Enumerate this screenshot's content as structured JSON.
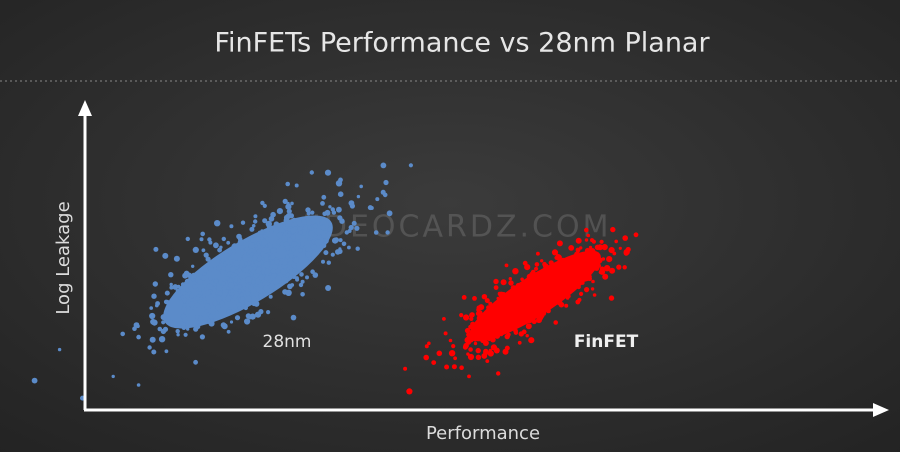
{
  "slide": {
    "title": "FinFETs Performance vs 28nm Planar",
    "y_axis_label": "Log Leakage",
    "x_axis_label": "Performance",
    "clusters": [
      {
        "label": "28nm"
      },
      {
        "label": "FinFET"
      }
    ],
    "watermark": "VIDEOCARDZ.COM"
  }
}
